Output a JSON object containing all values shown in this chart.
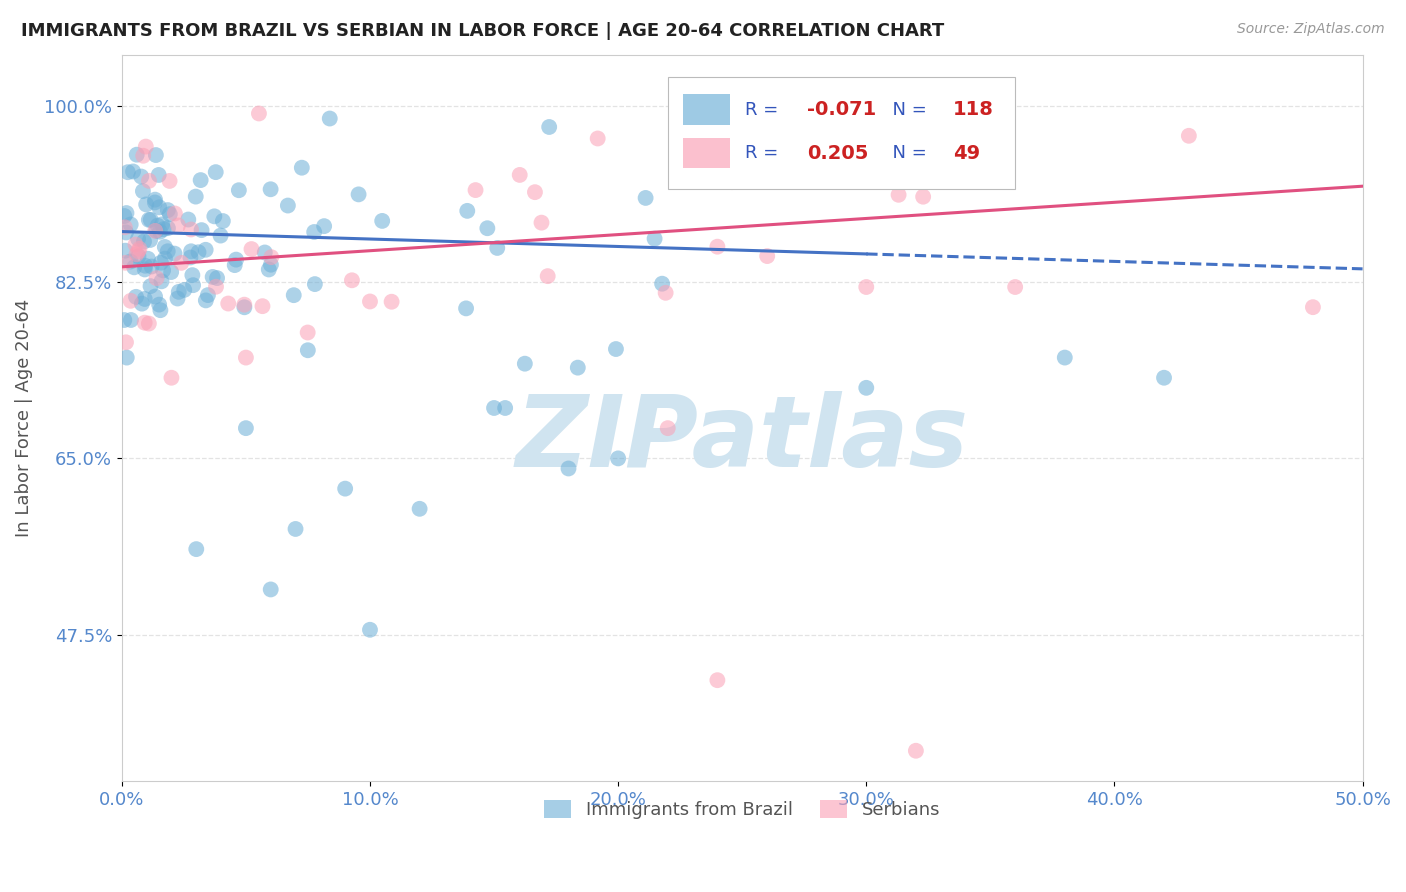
{
  "title": "IMMIGRANTS FROM BRAZIL VS SERBIAN IN LABOR FORCE | AGE 20-64 CORRELATION CHART",
  "source": "Source: ZipAtlas.com",
  "ylabel": "In Labor Force | Age 20-64",
  "xlim": [
    0.0,
    0.5
  ],
  "ylim": [
    0.33,
    1.05
  ],
  "xticks": [
    0.0,
    0.1,
    0.2,
    0.3,
    0.4,
    0.5
  ],
  "xtick_labels": [
    "0.0%",
    "10.0%",
    "20.0%",
    "30.0%",
    "40.0%",
    "50.0%"
  ],
  "yticks": [
    0.475,
    0.65,
    0.825,
    1.0
  ],
  "ytick_labels": [
    "47.5%",
    "65.0%",
    "82.5%",
    "100.0%"
  ],
  "legend_labels": [
    "Immigrants from Brazil",
    "Serbians"
  ],
  "brazil_color": "#6baed6",
  "serbia_color": "#fa9fb5",
  "brazil_R": -0.071,
  "brazil_N": 118,
  "serbia_R": 0.205,
  "serbia_N": 49,
  "watermark_text": "ZIPatlas",
  "watermark_color": "#d0e4f0",
  "background_color": "#ffffff",
  "grid_color": "#dddddd",
  "title_color": "#222222",
  "axis_label_color": "#555555",
  "tick_color": "#5588cc",
  "trend_brazil_color": "#4472c4",
  "trend_serbia_color": "#e05080",
  "legend_label_color": "#3355bb",
  "legend_value_color": "#cc2222"
}
